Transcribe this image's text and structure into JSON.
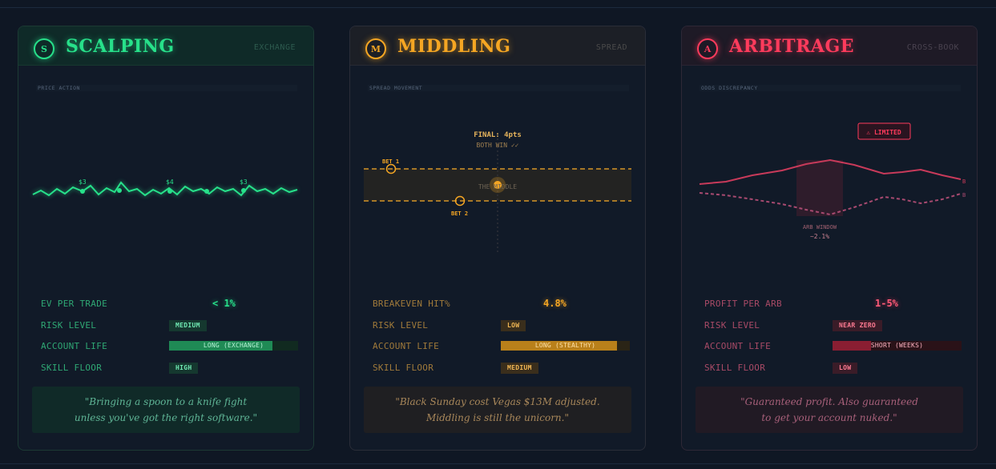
{
  "cards": [
    {
      "id": "scalping",
      "badge": "S",
      "title": "SCALPING",
      "subtitle": "EXCHANGE",
      "chart_label": "PRICE ACTION",
      "chart_annotations": [
        "$3",
        "$4",
        "$3"
      ],
      "stats": {
        "metric_label": "EV PER TRADE",
        "metric_value": "< 1%",
        "risk_label": "RISK LEVEL",
        "risk_value": "MEDIUM",
        "life_label": "ACCOUNT LIFE",
        "life_value": "LONG (EXCHANGE)",
        "life_level": 0.8,
        "skill_label": "SKILL FLOOR",
        "skill_value": "HIGH"
      },
      "quote": [
        "\"Bringing a spoon to a knife fight",
        "unless you've got the right software.\""
      ],
      "colors": {
        "accent": "#27e08a"
      }
    },
    {
      "id": "middling",
      "badge": "M",
      "title": "MIDDLING",
      "subtitle": "SPREAD",
      "chart_label": "SPREAD MOVEMENT",
      "chart_annotations": {
        "final": "FINAL: 4pts",
        "both_win": "BOTH WIN ✓✓",
        "bet1": "BET 1",
        "bet2": "BET 2",
        "middle": "THE MIDDLE"
      },
      "stats": {
        "metric_label": "BREAKEVEN HIT%",
        "metric_value": "4.8%",
        "risk_label": "RISK LEVEL",
        "risk_value": "LOW",
        "life_label": "ACCOUNT LIFE",
        "life_value": "LONG (STEALTHY)",
        "life_level": 0.9,
        "skill_label": "SKILL FLOOR",
        "skill_value": "MEDIUM"
      },
      "quote": [
        "\"Black Sunday cost Vegas $13M adjusted.",
        "Middling is still the unicorn.\""
      ],
      "colors": {
        "accent": "#f5a623"
      }
    },
    {
      "id": "arbitrage",
      "badge": "A",
      "title": "ARBITRAGE",
      "subtitle": "CROSS-BOOK",
      "chart_label": "ODDS DISCREPANCY",
      "chart_annotations": {
        "limited": "⚠ LIMITED",
        "window": "ARB WINDOW",
        "window_value": "~2.1%",
        "line_a": "B",
        "line_b": "B"
      },
      "stats": {
        "metric_label": "PROFIT PER ARB",
        "metric_value": "1-5%",
        "risk_label": "RISK LEVEL",
        "risk_value": "NEAR ZERO",
        "life_label": "ACCOUNT LIFE",
        "life_value": "SHORT (WEEKS)",
        "life_level": 0.3,
        "skill_label": "SKILL FLOOR",
        "skill_value": "LOW"
      },
      "quote": [
        "\"Guaranteed profit. Also guaranteed",
        "to get your account nuked.\""
      ],
      "colors": {
        "accent": "#ff3b5c"
      }
    }
  ]
}
